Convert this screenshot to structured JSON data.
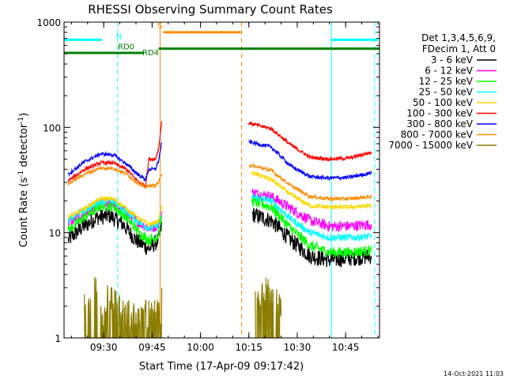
{
  "chart_data": {
    "type": "line",
    "title": "RHESSI Observing Summary Count Rates",
    "xlabel": "Start Time (17-Apr-09 09:17:42)",
    "ylabel_main": "Count Rate (s",
    "ylabel_sup": "-1",
    "ylabel_tail": " detector",
    "ylabel_end": ")",
    "yscale": "log",
    "ylim": [
      1,
      1000
    ],
    "xlim": [
      "09:17:42",
      "10:55:30"
    ],
    "y_ticks": [
      {
        "value": 1,
        "label": "1"
      },
      {
        "value": 10,
        "label": "10"
      },
      {
        "value": 100,
        "label": "100"
      },
      {
        "value": 1000,
        "label": "1000"
      }
    ],
    "x_ticks": [
      {
        "value": "09:30",
        "label": "09:30"
      },
      {
        "value": "09:45",
        "label": "09:45"
      },
      {
        "value": "10:00",
        "label": "10:00"
      },
      {
        "value": "10:15",
        "label": "10:15"
      },
      {
        "value": "10:30",
        "label": "10:30"
      },
      {
        "value": "10:45",
        "label": "10:45"
      }
    ],
    "legend_header": [
      "Det 1,3,4,5,6,9,",
      "FDecim 1, Att 0"
    ],
    "legend_position": "right",
    "series": [
      {
        "name": "3 - 6 keV",
        "color": "#000000",
        "noise": 0.18,
        "points": [
          [
            "09:19",
            8.5
          ],
          [
            "09:23",
            11
          ],
          [
            "09:28",
            14
          ],
          [
            "09:32",
            14.5
          ],
          [
            "09:36",
            12
          ],
          [
            "09:40",
            8.5
          ],
          [
            "09:44",
            7
          ],
          [
            "09:46",
            8
          ],
          [
            "09:47",
            8.5
          ],
          [
            "09:48",
            12
          ],
          [
            "10:16",
            15
          ],
          [
            "10:22",
            13
          ],
          [
            "10:28",
            8.5
          ],
          [
            "10:34",
            6
          ],
          [
            "10:40",
            5.5
          ],
          [
            "10:46",
            5.7
          ],
          [
            "10:53",
            6
          ]
        ]
      },
      {
        "name": "6 - 12 keV",
        "color": "#ff00ff",
        "noise": 0.12,
        "points": [
          [
            "09:19",
            12.5
          ],
          [
            "09:24",
            15
          ],
          [
            "09:29",
            19
          ],
          [
            "09:33",
            19
          ],
          [
            "09:37",
            15.5
          ],
          [
            "09:41",
            12.5
          ],
          [
            "09:44",
            11
          ],
          [
            "09:46",
            11.5
          ],
          [
            "09:47",
            12
          ],
          [
            "09:48",
            16
          ],
          [
            "10:16",
            24
          ],
          [
            "10:22",
            22
          ],
          [
            "10:28",
            17
          ],
          [
            "10:34",
            13
          ],
          [
            "10:40",
            11.5
          ],
          [
            "10:46",
            11.5
          ],
          [
            "10:53",
            12
          ]
        ]
      },
      {
        "name": "12 - 25 keV",
        "color": "#00ff00",
        "noise": 0.12,
        "points": [
          [
            "09:19",
            10.5
          ],
          [
            "09:24",
            14
          ],
          [
            "09:29",
            18
          ],
          [
            "09:33",
            18
          ],
          [
            "09:37",
            14
          ],
          [
            "09:41",
            10
          ],
          [
            "09:44",
            8.5
          ],
          [
            "09:46",
            9
          ],
          [
            "09:47",
            9.5
          ],
          [
            "09:48",
            14
          ],
          [
            "10:16",
            20
          ],
          [
            "10:22",
            17.5
          ],
          [
            "10:28",
            11
          ],
          [
            "10:34",
            7.5
          ],
          [
            "10:40",
            6.5
          ],
          [
            "10:46",
            6.5
          ],
          [
            "10:53",
            6.8
          ]
        ]
      },
      {
        "name": "25 - 50 keV",
        "color": "#00ffff",
        "noise": 0.08,
        "points": [
          [
            "09:19",
            13
          ],
          [
            "09:24",
            16.5
          ],
          [
            "09:29",
            20
          ],
          [
            "09:33",
            20
          ],
          [
            "09:37",
            16
          ],
          [
            "09:41",
            12.5
          ],
          [
            "09:44",
            11
          ],
          [
            "09:46",
            11.5
          ],
          [
            "09:47",
            12
          ],
          [
            "09:48",
            17
          ],
          [
            "10:16",
            22
          ],
          [
            "10:22",
            20
          ],
          [
            "10:28",
            13.5
          ],
          [
            "10:34",
            10
          ],
          [
            "10:40",
            9
          ],
          [
            "10:46",
            9
          ],
          [
            "10:53",
            9.2
          ]
        ]
      },
      {
        "name": "50 - 100 keV",
        "color": "#ffd700",
        "noise": 0.05,
        "points": [
          [
            "09:19",
            14
          ],
          [
            "09:24",
            17
          ],
          [
            "09:29",
            21
          ],
          [
            "09:33",
            21
          ],
          [
            "09:37",
            17
          ],
          [
            "09:41",
            13.5
          ],
          [
            "09:44",
            12
          ],
          [
            "09:46",
            12.5
          ],
          [
            "09:47",
            13
          ],
          [
            "09:48",
            18
          ],
          [
            "10:16",
            37
          ],
          [
            "10:22",
            32
          ],
          [
            "10:28",
            23
          ],
          [
            "10:34",
            18
          ],
          [
            "10:40",
            17.5
          ],
          [
            "10:46",
            17.5
          ],
          [
            "10:53",
            18
          ]
        ]
      },
      {
        "name": "100 - 300 keV",
        "color": "#ff0000",
        "noise": 0.04,
        "points": [
          [
            "09:19",
            31
          ],
          [
            "09:24",
            40
          ],
          [
            "09:29",
            46
          ],
          [
            "09:33",
            46
          ],
          [
            "09:37",
            40
          ],
          [
            "09:41",
            30
          ],
          [
            "09:43",
            28
          ],
          [
            "09:44",
            50
          ],
          [
            "09:46",
            50
          ],
          [
            "09:47",
            62
          ],
          [
            "09:48",
            115
          ],
          [
            "10:15",
            110
          ],
          [
            "10:22",
            97
          ],
          [
            "10:28",
            68
          ],
          [
            "10:34",
            52
          ],
          [
            "10:40",
            50
          ],
          [
            "10:46",
            51
          ],
          [
            "10:53",
            58
          ]
        ]
      },
      {
        "name": "300 - 800 keV",
        "color": "#0000ff",
        "noise": 0.04,
        "points": [
          [
            "09:19",
            36
          ],
          [
            "09:24",
            47
          ],
          [
            "09:29",
            56
          ],
          [
            "09:33",
            55
          ],
          [
            "09:37",
            45
          ],
          [
            "09:41",
            35
          ],
          [
            "09:43",
            32
          ],
          [
            "09:44",
            40
          ],
          [
            "09:46",
            40
          ],
          [
            "09:47",
            48
          ],
          [
            "09:48",
            72
          ],
          [
            "10:15",
            73
          ],
          [
            "10:22",
            65
          ],
          [
            "10:28",
            43
          ],
          [
            "10:34",
            34
          ],
          [
            "10:40",
            33
          ],
          [
            "10:46",
            33.5
          ],
          [
            "10:53",
            37
          ]
        ]
      },
      {
        "name": "800 - 7000 keV",
        "color": "#ff8c00",
        "noise": 0.04,
        "points": [
          [
            "09:19",
            29
          ],
          [
            "09:24",
            36
          ],
          [
            "09:29",
            41
          ],
          [
            "09:33",
            41
          ],
          [
            "09:37",
            36
          ],
          [
            "09:41",
            29
          ],
          [
            "09:43",
            27
          ],
          [
            "09:44",
            28
          ],
          [
            "09:46",
            28
          ],
          [
            "09:47",
            30
          ],
          [
            "09:48",
            36
          ],
          [
            "10:15",
            44
          ],
          [
            "10:22",
            39
          ],
          [
            "10:28",
            28
          ],
          [
            "10:34",
            22
          ],
          [
            "10:40",
            21
          ],
          [
            "10:46",
            21
          ],
          [
            "10:53",
            22
          ]
        ]
      },
      {
        "name": "7000 - 15000 keV",
        "color": "#8b7d00",
        "noise": 0,
        "points": [
          [
            "09:24",
            2
          ],
          [
            "09:26",
            3.0
          ],
          [
            "09:29",
            1.7
          ],
          [
            "09:31",
            2.6
          ],
          [
            "09:35",
            1.8
          ],
          [
            "09:48",
            3
          ],
          [
            "10:17",
            2.2
          ],
          [
            "10:19",
            3
          ],
          [
            "10:22",
            2.3
          ],
          [
            "10:25",
            1.6
          ]
        ]
      }
    ],
    "state_bars": [
      {
        "label": "N",
        "color": "#00ffff",
        "y": 680,
        "segments": [
          [
            "09:17:42",
            "09:29:30"
          ],
          [
            "10:40:40",
            "10:55:00"
          ]
        ]
      },
      {
        "label": "RD0",
        "color": "#008000",
        "y": 560,
        "segments": [
          [
            "09:47:00",
            "10:55:30"
          ]
        ]
      },
      {
        "label": "RD4",
        "color": "#008000",
        "y": 510,
        "segments": [
          [
            "09:17:42",
            "09:42:30"
          ]
        ]
      },
      {
        "label": "S",
        "color": "#ff8c00",
        "y": 800,
        "segments": [
          [
            "09:48:30",
            "10:12:30"
          ]
        ]
      }
    ],
    "vertical_lines": [
      {
        "time": "09:17:42",
        "color": "#00ffff",
        "style": "solid"
      },
      {
        "time": "09:34:20",
        "color": "#00ffff",
        "style": "dashed"
      },
      {
        "time": "09:47:30",
        "color": "#ff8c00",
        "style": "solid"
      },
      {
        "time": "10:12:45",
        "color": "#ff8c00",
        "style": "dashed"
      },
      {
        "time": "10:40:35",
        "color": "#00ffff",
        "style": "solid"
      },
      {
        "time": "10:54:00",
        "color": "#00ffff",
        "style": "dashed"
      }
    ],
    "data_gap": [
      "09:48:00",
      "10:14:00"
    ],
    "timestamp": "14-Oct-2021 11:03"
  }
}
